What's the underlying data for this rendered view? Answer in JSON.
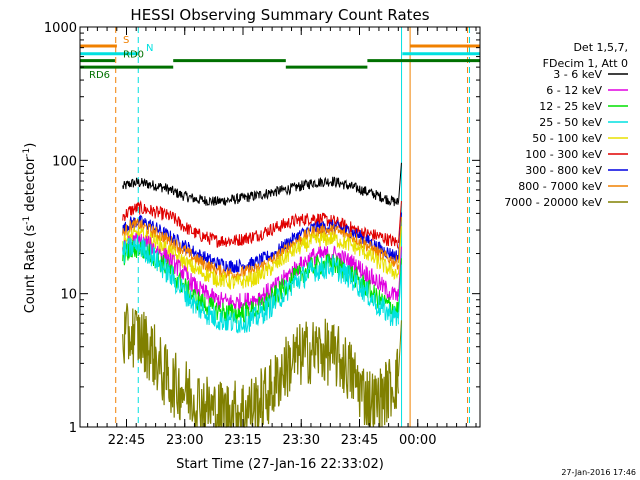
{
  "chart_data": {
    "type": "line",
    "title": "HESSI Observing Summary Count Rates",
    "xlabel": "Start Time (27-Jan-16 22:33:02)",
    "ylabel_main": "Count Rate (s",
    "ylabel_sup1": "-1",
    "ylabel_mid": " detector",
    "ylabel_sup2": "-1",
    "ylabel_end": ")",
    "y_scale": "log",
    "ylim": [
      1,
      1000
    ],
    "y_ticks": [
      {
        "value": 1,
        "label": "1"
      },
      {
        "value": 10,
        "label": "10"
      },
      {
        "value": 100,
        "label": "100"
      },
      {
        "value": 1000,
        "label": "1000"
      }
    ],
    "x_unit": "minutes since 22:33:02",
    "xlim": [
      0,
      103
    ],
    "x_ticks": [
      {
        "value": 11.97,
        "label": "22:45"
      },
      {
        "value": 26.97,
        "label": "23:00"
      },
      {
        "value": 41.97,
        "label": "23:15"
      },
      {
        "value": 56.97,
        "label": "23:30"
      },
      {
        "value": 71.97,
        "label": "23:45"
      },
      {
        "value": 86.97,
        "label": "00:00"
      }
    ],
    "legend": {
      "position": "right",
      "header": [
        "Det 1,5,7,",
        "FDecim 1, Att 0"
      ],
      "entries": [
        {
          "label": "3 - 6 keV",
          "color": "#000000"
        },
        {
          "label": "6 - 12 keV",
          "color": "#e000e0"
        },
        {
          "label": "12 - 25 keV",
          "color": "#00e000"
        },
        {
          "label": "25 - 50 keV",
          "color": "#00e0e0"
        },
        {
          "label": "50 - 100 keV",
          "color": "#e8e000"
        },
        {
          "label": "100 - 300 keV",
          "color": "#e00000"
        },
        {
          "label": "300 - 800 keV",
          "color": "#0000e0"
        },
        {
          "label": "800 - 7000 keV",
          "color": "#f08000"
        },
        {
          "label": "7000 - 20000 keV",
          "color": "#808000"
        }
      ]
    },
    "flags": [
      {
        "label": "S",
        "color": "#f08000",
        "y": 720,
        "segments": [
          [
            0,
            9.5
          ],
          [
            85,
            103
          ]
        ]
      },
      {
        "label": "N",
        "color": "#00e0e0",
        "y": 630,
        "segments": [
          [
            0,
            15
          ],
          [
            83,
            103
          ]
        ]
      },
      {
        "label": "RD0",
        "color": "#007000",
        "y": 560,
        "segments": [
          [
            0,
            9
          ],
          [
            24,
            53
          ],
          [
            74,
            103
          ]
        ]
      },
      {
        "label": "RD6",
        "color": "#007000",
        "y": 500,
        "segments": [
          [
            0,
            24
          ],
          [
            53,
            74
          ]
        ]
      }
    ],
    "vertical_lines": [
      {
        "x": 9.2,
        "color": "#f08000",
        "style": "dashed"
      },
      {
        "x": 15.0,
        "color": "#00e0e0",
        "style": "dashed"
      },
      {
        "x": 82.8,
        "color": "#00e0e0",
        "style": "solid"
      },
      {
        "x": 85.0,
        "color": "#f08000",
        "style": "solid"
      },
      {
        "x": 99.8,
        "color": "#f08000",
        "style": "dashed"
      },
      {
        "x": 100.3,
        "color": "#00e0e0",
        "style": "dashed"
      }
    ],
    "series": [
      {
        "name": "3 - 6 keV",
        "color": "#000000",
        "noise": 0.04,
        "x": [
          11,
          13,
          15,
          18,
          22,
          26,
          30,
          35,
          40,
          45,
          50,
          55,
          60,
          65,
          68,
          71,
          74,
          77,
          80,
          82
        ],
        "y": [
          63,
          67,
          68,
          66,
          62,
          55,
          51,
          49,
          51,
          54,
          58,
          62,
          68,
          70,
          66,
          62,
          58,
          54,
          50,
          48
        ]
      },
      {
        "name": "100 - 300 keV",
        "color": "#e00000",
        "noise": 0.05,
        "x": [
          11,
          13,
          15,
          18,
          22,
          24,
          26,
          30,
          35,
          40,
          45,
          50,
          55,
          60,
          65,
          70,
          72,
          74,
          77,
          80,
          82
        ],
        "y": [
          38,
          42,
          44,
          42,
          39,
          37,
          33,
          28,
          25,
          25,
          27,
          31,
          35,
          37,
          35,
          31,
          29,
          28,
          27,
          25,
          24
        ]
      },
      {
        "name": "300 - 800 keV",
        "color": "#0000e0",
        "noise": 0.05,
        "x": [
          11,
          13,
          15,
          18,
          22,
          26,
          30,
          35,
          40,
          45,
          50,
          55,
          60,
          65,
          70,
          74,
          77,
          80,
          82
        ],
        "y": [
          30,
          34,
          35,
          33,
          28,
          24,
          20,
          17,
          16,
          17,
          20,
          26,
          31,
          32,
          29,
          25,
          22,
          20,
          19
        ]
      },
      {
        "name": "800 - 7000 keV",
        "color": "#f08000",
        "noise": 0.05,
        "x": [
          11,
          13,
          15,
          18,
          22,
          26,
          30,
          35,
          40,
          45,
          50,
          55,
          60,
          65,
          70,
          74,
          77,
          80,
          82
        ],
        "y": [
          28,
          32,
          33,
          30,
          26,
          22,
          18,
          15,
          14,
          15,
          18,
          24,
          29,
          30,
          27,
          23,
          20,
          18,
          17
        ]
      },
      {
        "name": "50 - 100 keV",
        "color": "#e8e000",
        "noise": 0.06,
        "x": [
          11,
          13,
          15,
          18,
          22,
          26,
          30,
          35,
          40,
          45,
          50,
          55,
          60,
          65,
          70,
          74,
          77,
          80,
          82
        ],
        "y": [
          24,
          27,
          28,
          26,
          22,
          18,
          15,
          13,
          12,
          13,
          16,
          21,
          25,
          26,
          23,
          20,
          17,
          15,
          14
        ]
      },
      {
        "name": "6 - 12 keV",
        "color": "#e000e0",
        "noise": 0.07,
        "x": [
          11,
          13,
          15,
          18,
          22,
          26,
          30,
          35,
          40,
          45,
          50,
          55,
          60,
          65,
          70,
          74,
          77,
          80,
          82
        ],
        "y": [
          21,
          24,
          25,
          23,
          19,
          15,
          11,
          9,
          8.5,
          9,
          11,
          15,
          19,
          20,
          17,
          14,
          12,
          10,
          9.5
        ]
      },
      {
        "name": "12 - 25 keV",
        "color": "#00e000",
        "noise": 0.08,
        "x": [
          11,
          13,
          15,
          18,
          22,
          26,
          30,
          35,
          40,
          45,
          50,
          55,
          60,
          65,
          70,
          74,
          77,
          80,
          82
        ],
        "y": [
          19,
          21,
          22,
          20,
          16,
          12,
          9,
          7.5,
          7,
          7.5,
          9.5,
          13,
          16,
          17,
          14,
          11,
          9,
          8,
          7.5
        ]
      },
      {
        "name": "25 - 50 keV",
        "color": "#00e0e0",
        "noise": 0.09,
        "x": [
          11,
          13,
          15,
          18,
          22,
          26,
          30,
          35,
          40,
          45,
          50,
          55,
          60,
          65,
          70,
          74,
          77,
          80,
          82
        ],
        "y": [
          20,
          22,
          23,
          20,
          15,
          11,
          8,
          6.5,
          6,
          6.5,
          8.5,
          12,
          15,
          16,
          13,
          10,
          8,
          7,
          6.5
        ]
      },
      {
        "name": "7000 - 20000 keV",
        "color": "#808000",
        "noise": 0.25,
        "x": [
          11,
          13,
          15,
          17,
          19,
          21,
          23,
          25,
          27,
          30,
          35,
          40,
          44,
          47,
          50,
          52,
          55,
          58,
          61,
          64,
          67,
          70,
          73,
          76,
          78,
          80,
          82
        ],
        "y": [
          4.5,
          5.0,
          4.8,
          4.2,
          3.5,
          2.6,
          2.2,
          2.0,
          1.9,
          1.6,
          1.3,
          1.3,
          1.4,
          1.6,
          2.0,
          2.6,
          3.2,
          3.6,
          3.8,
          3.6,
          3.2,
          2.5,
          1.8,
          1.5,
          1.7,
          2.0,
          2.4
        ]
      }
    ],
    "footer_timestamp": "27-Jan-2016 17:46"
  }
}
